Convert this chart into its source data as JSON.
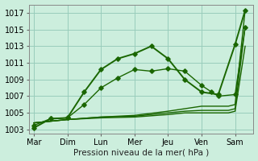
{
  "xlabel": "Pression niveau de la mer( hPa )",
  "background_color": "#cceedd",
  "grid_color": "#99ccbb",
  "line_color": "#1a6600",
  "xlabels": [
    "Mar",
    "Dim",
    "Lun",
    "Mer",
    "Jeu",
    "Ven",
    "Sam"
  ],
  "x_positions": [
    0,
    1,
    2,
    3,
    4,
    5,
    6
  ],
  "ylim": [
    1002.5,
    1018
  ],
  "yticks": [
    1003,
    1005,
    1007,
    1009,
    1011,
    1013,
    1015,
    1017
  ],
  "series": [
    {
      "x": [
        0.0,
        0.5,
        1.0,
        1.5,
        2.0,
        2.5,
        3.0,
        3.5,
        4.0,
        4.5,
        5.0,
        5.5,
        6.0,
        6.3
      ],
      "y": [
        1003.2,
        1004.3,
        1004.4,
        1007.5,
        1010.2,
        1011.5,
        1012.1,
        1013.0,
        1011.5,
        1009.0,
        1007.5,
        1007.2,
        1013.2,
        1017.3
      ],
      "marker": "D",
      "markersize": 2.8,
      "linewidth": 1.4,
      "zorder": 4
    },
    {
      "x": [
        0.0,
        0.5,
        1.0,
        1.5,
        2.0,
        2.5,
        3.0,
        3.5,
        4.0,
        4.5,
        5.0,
        5.3,
        5.5,
        6.0,
        6.3
      ],
      "y": [
        1003.5,
        1004.3,
        1004.4,
        1006.0,
        1008.0,
        1009.2,
        1010.2,
        1010.0,
        1010.3,
        1010.0,
        1008.3,
        1007.5,
        1007.0,
        1007.2,
        1015.3
      ],
      "marker": "D",
      "markersize": 2.8,
      "linewidth": 1.0,
      "zorder": 4
    },
    {
      "x": [
        0.0,
        1.0,
        2.0,
        3.0,
        4.0,
        4.5,
        5.0,
        5.5,
        5.8,
        6.0,
        6.3
      ],
      "y": [
        1003.8,
        1004.2,
        1004.4,
        1004.5,
        1004.8,
        1005.0,
        1005.0,
        1005.0,
        1005.0,
        1005.2,
        1013.0
      ],
      "marker": null,
      "markersize": 0,
      "linewidth": 1.0,
      "zorder": 2
    },
    {
      "x": [
        0.0,
        1.0,
        2.0,
        3.0,
        4.0,
        4.5,
        5.0,
        5.5,
        5.8,
        6.0,
        6.3
      ],
      "y": [
        1003.8,
        1004.2,
        1004.5,
        1004.6,
        1005.0,
        1005.2,
        1005.3,
        1005.3,
        1005.3,
        1005.5,
        1015.3
      ],
      "marker": null,
      "markersize": 0,
      "linewidth": 1.0,
      "zorder": 2
    },
    {
      "x": [
        0.0,
        1.0,
        2.0,
        3.0,
        4.0,
        4.5,
        5.0,
        5.5,
        5.8,
        6.0,
        6.3
      ],
      "y": [
        1003.8,
        1004.2,
        1004.5,
        1004.7,
        1005.2,
        1005.5,
        1005.8,
        1005.8,
        1005.8,
        1006.0,
        1017.3
      ],
      "marker": null,
      "markersize": 0,
      "linewidth": 1.0,
      "zorder": 2
    }
  ]
}
